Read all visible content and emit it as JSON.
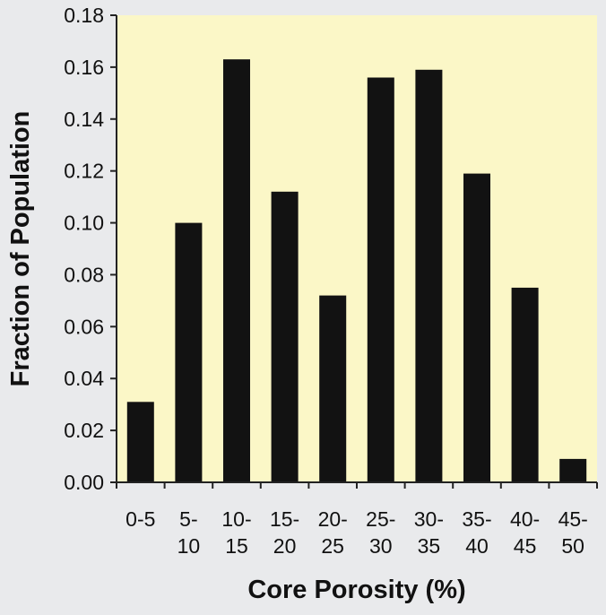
{
  "colors": {
    "page_background": "#e9eaec",
    "plot_background": "#fbf7c7",
    "bar": "#121212",
    "axis": "#222222",
    "text": "#111111"
  },
  "chart_data": {
    "type": "bar",
    "title": "",
    "xlabel": "Core Porosity (%)",
    "ylabel": "Fraction of Population",
    "ylim": [
      0,
      0.18
    ],
    "yticks": [
      "0.00",
      "0.02",
      "0.04",
      "0.06",
      "0.08",
      "0.10",
      "0.12",
      "0.14",
      "0.16",
      "0.18"
    ],
    "grid": false,
    "legend": "none",
    "categories": [
      [
        "0-5"
      ],
      [
        "5-",
        "10"
      ],
      [
        "10-",
        "15"
      ],
      [
        "15-",
        "20"
      ],
      [
        "20-",
        "25"
      ],
      [
        "25-",
        "30"
      ],
      [
        "30-",
        "35"
      ],
      [
        "35-",
        "40"
      ],
      [
        "40-",
        "45"
      ],
      [
        "45-",
        "50"
      ]
    ],
    "values": [
      0.031,
      0.1,
      0.163,
      0.112,
      0.072,
      0.156,
      0.159,
      0.119,
      0.075,
      0.009
    ]
  }
}
